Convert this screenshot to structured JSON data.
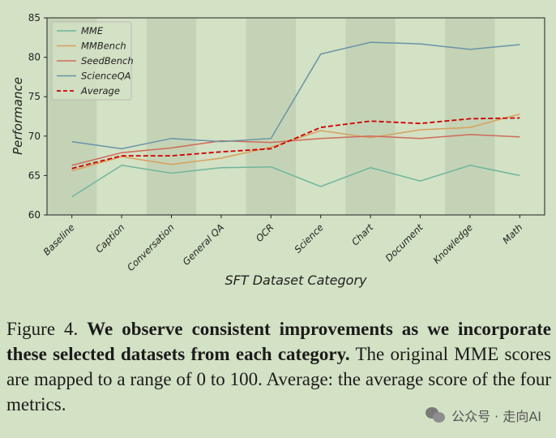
{
  "chart_data": {
    "type": "line",
    "categories": [
      "Baseline",
      "Caption",
      "Conversation",
      "General QA",
      "OCR",
      "Science",
      "Chart",
      "Document",
      "Knowledge",
      "Math"
    ],
    "series": [
      {
        "name": "MME",
        "values": [
          62.3,
          66.3,
          65.3,
          66.0,
          66.1,
          63.6,
          66.0,
          64.3,
          66.3,
          65.0
        ],
        "color": "#6fb59c",
        "dashed": false
      },
      {
        "name": "MMBench",
        "values": [
          65.6,
          67.4,
          66.4,
          67.2,
          68.6,
          70.7,
          69.8,
          70.8,
          71.1,
          72.8
        ],
        "color": "#d8a05c",
        "dashed": false
      },
      {
        "name": "SeedBench",
        "values": [
          66.3,
          67.9,
          68.5,
          69.4,
          69.2,
          69.7,
          70.0,
          69.7,
          70.2,
          69.9
        ],
        "color": "#d06a5a",
        "dashed": false
      },
      {
        "name": "ScienceQA",
        "values": [
          69.3,
          68.4,
          69.7,
          69.3,
          69.7,
          80.4,
          81.9,
          81.7,
          81.0,
          81.6
        ],
        "color": "#6a93a6",
        "dashed": false
      },
      {
        "name": "Average",
        "values": [
          65.9,
          67.5,
          67.5,
          68.0,
          68.4,
          71.1,
          71.9,
          71.6,
          72.2,
          72.3
        ],
        "color": "#cc0000",
        "dashed": true
      }
    ],
    "xlabel": "SFT Dataset Category",
    "ylabel": "Performance",
    "ylim": [
      60,
      85
    ],
    "yticks": [
      60,
      65,
      70,
      75,
      80,
      85
    ],
    "legend_position": "top-left",
    "grid": false,
    "background_color": "#d3e1c4",
    "alternating_band_color": "#c4d3b6"
  },
  "caption": {
    "prefix": "Figure 4. ",
    "bold": "We observe consistent improvements as we incorporate these selected datasets from each category.",
    "rest": " The original MME scores are mapped to a range of 0 to 100. Average: the average score of the four metrics."
  },
  "watermark": {
    "text": "公众号 · 走向AI",
    "icon": "wechat-icon"
  }
}
